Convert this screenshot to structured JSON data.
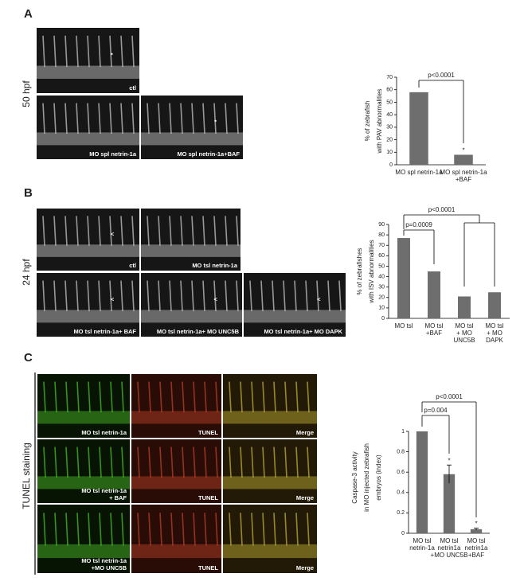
{
  "panels": [
    {
      "label": "A",
      "stage": "50 hpf",
      "images": [
        {
          "label": [
            "ctl"
          ],
          "mark": "*"
        },
        {
          "label": [
            "MO spl netrin-1a"
          ]
        },
        {
          "label": [
            "MO spl netrin-1a+BAF"
          ],
          "mark": "*"
        }
      ]
    },
    {
      "label": "B",
      "stage": "24 hpf",
      "images": [
        {
          "label": [
            "ctl"
          ],
          "mark": "<"
        },
        {
          "label": [
            "MO tsl netrin-1a"
          ]
        },
        {
          "label": [
            "MO tsl netrin-1a+ BAF"
          ],
          "mark": "<"
        },
        {
          "label": [
            "MO tsl netrin-1a+ MO UNC5B"
          ],
          "mark": "<"
        },
        {
          "label": [
            "MO tsl netrin-1a+ MO DAPK"
          ],
          "mark": "<"
        }
      ]
    },
    {
      "label": "C",
      "stage": "TUNEL staining",
      "images": [
        {
          "label": [
            "MO tsl netrin-1a"
          ]
        },
        {
          "label": [
            "TUNEL"
          ]
        },
        {
          "label": [
            "Merge"
          ]
        },
        {
          "label": [
            "MO tsl netrin-1a",
            "+ BAF"
          ]
        },
        {
          "label": [
            "TUNEL"
          ]
        },
        {
          "label": [
            "Merge"
          ]
        },
        {
          "label": [
            "MO tsl netrin-1a",
            "+MO UNC5B"
          ]
        },
        {
          "label": [
            "TUNEL"
          ]
        },
        {
          "label": [
            "Merge"
          ]
        }
      ]
    }
  ],
  "chart_data": [
    {
      "type": "bar",
      "ylabel": [
        "% of zebrafish",
        "with PAV abnormalities"
      ],
      "categories": [
        [
          "MO spl netrin-1a"
        ],
        [
          "MO spl netrin-1a",
          "+BAF"
        ]
      ],
      "values": [
        58,
        8
      ],
      "color": "#6e6e6e",
      "ylim": [
        0,
        70
      ],
      "yticks": [
        0,
        10,
        20,
        30,
        40,
        50,
        60,
        70
      ],
      "bar_notes": [
        null,
        "*"
      ],
      "significance": [
        "p<0.0001"
      ]
    },
    {
      "type": "bar",
      "ylabel": [
        "% of zebrafishes",
        "with ISV abnormalities"
      ],
      "categories": [
        [
          "MO tsl"
        ],
        [
          "MO tsl",
          "+BAF"
        ],
        [
          "MO tsl",
          "+ MO",
          "UNC5B"
        ],
        [
          "MO tsl",
          "+ MO",
          "DAPK"
        ]
      ],
      "values": [
        77,
        45,
        21,
        25
      ],
      "color": "#6e6e6e",
      "ylim": [
        0,
        90
      ],
      "yticks": [
        0,
        10,
        20,
        30,
        40,
        50,
        60,
        70,
        80,
        90
      ],
      "significance": [
        "p=0.0009",
        "p<0.0001"
      ]
    },
    {
      "type": "bar",
      "ylabel": [
        "Caspase-3 activity",
        "in MO injected zebrafish",
        "embryos (index)"
      ],
      "categories": [
        [
          "MO tsl",
          "netrin-1a"
        ],
        [
          "MO tsl",
          "netrin1a",
          "+MO UNC5B"
        ],
        [
          "MO tsl",
          "netrin1a",
          "+BAF"
        ]
      ],
      "values": [
        1,
        0.58,
        0.04
      ],
      "errors": [
        null,
        0.09,
        0.01
      ],
      "color": "#6e6e6e",
      "ylim": [
        0,
        1
      ],
      "yticks": [
        0,
        0.2,
        0.4,
        0.6,
        0.8,
        1
      ],
      "bar_notes": [
        null,
        "*",
        "*"
      ],
      "significance": [
        "p=0.004",
        "p<0.0001"
      ]
    }
  ]
}
